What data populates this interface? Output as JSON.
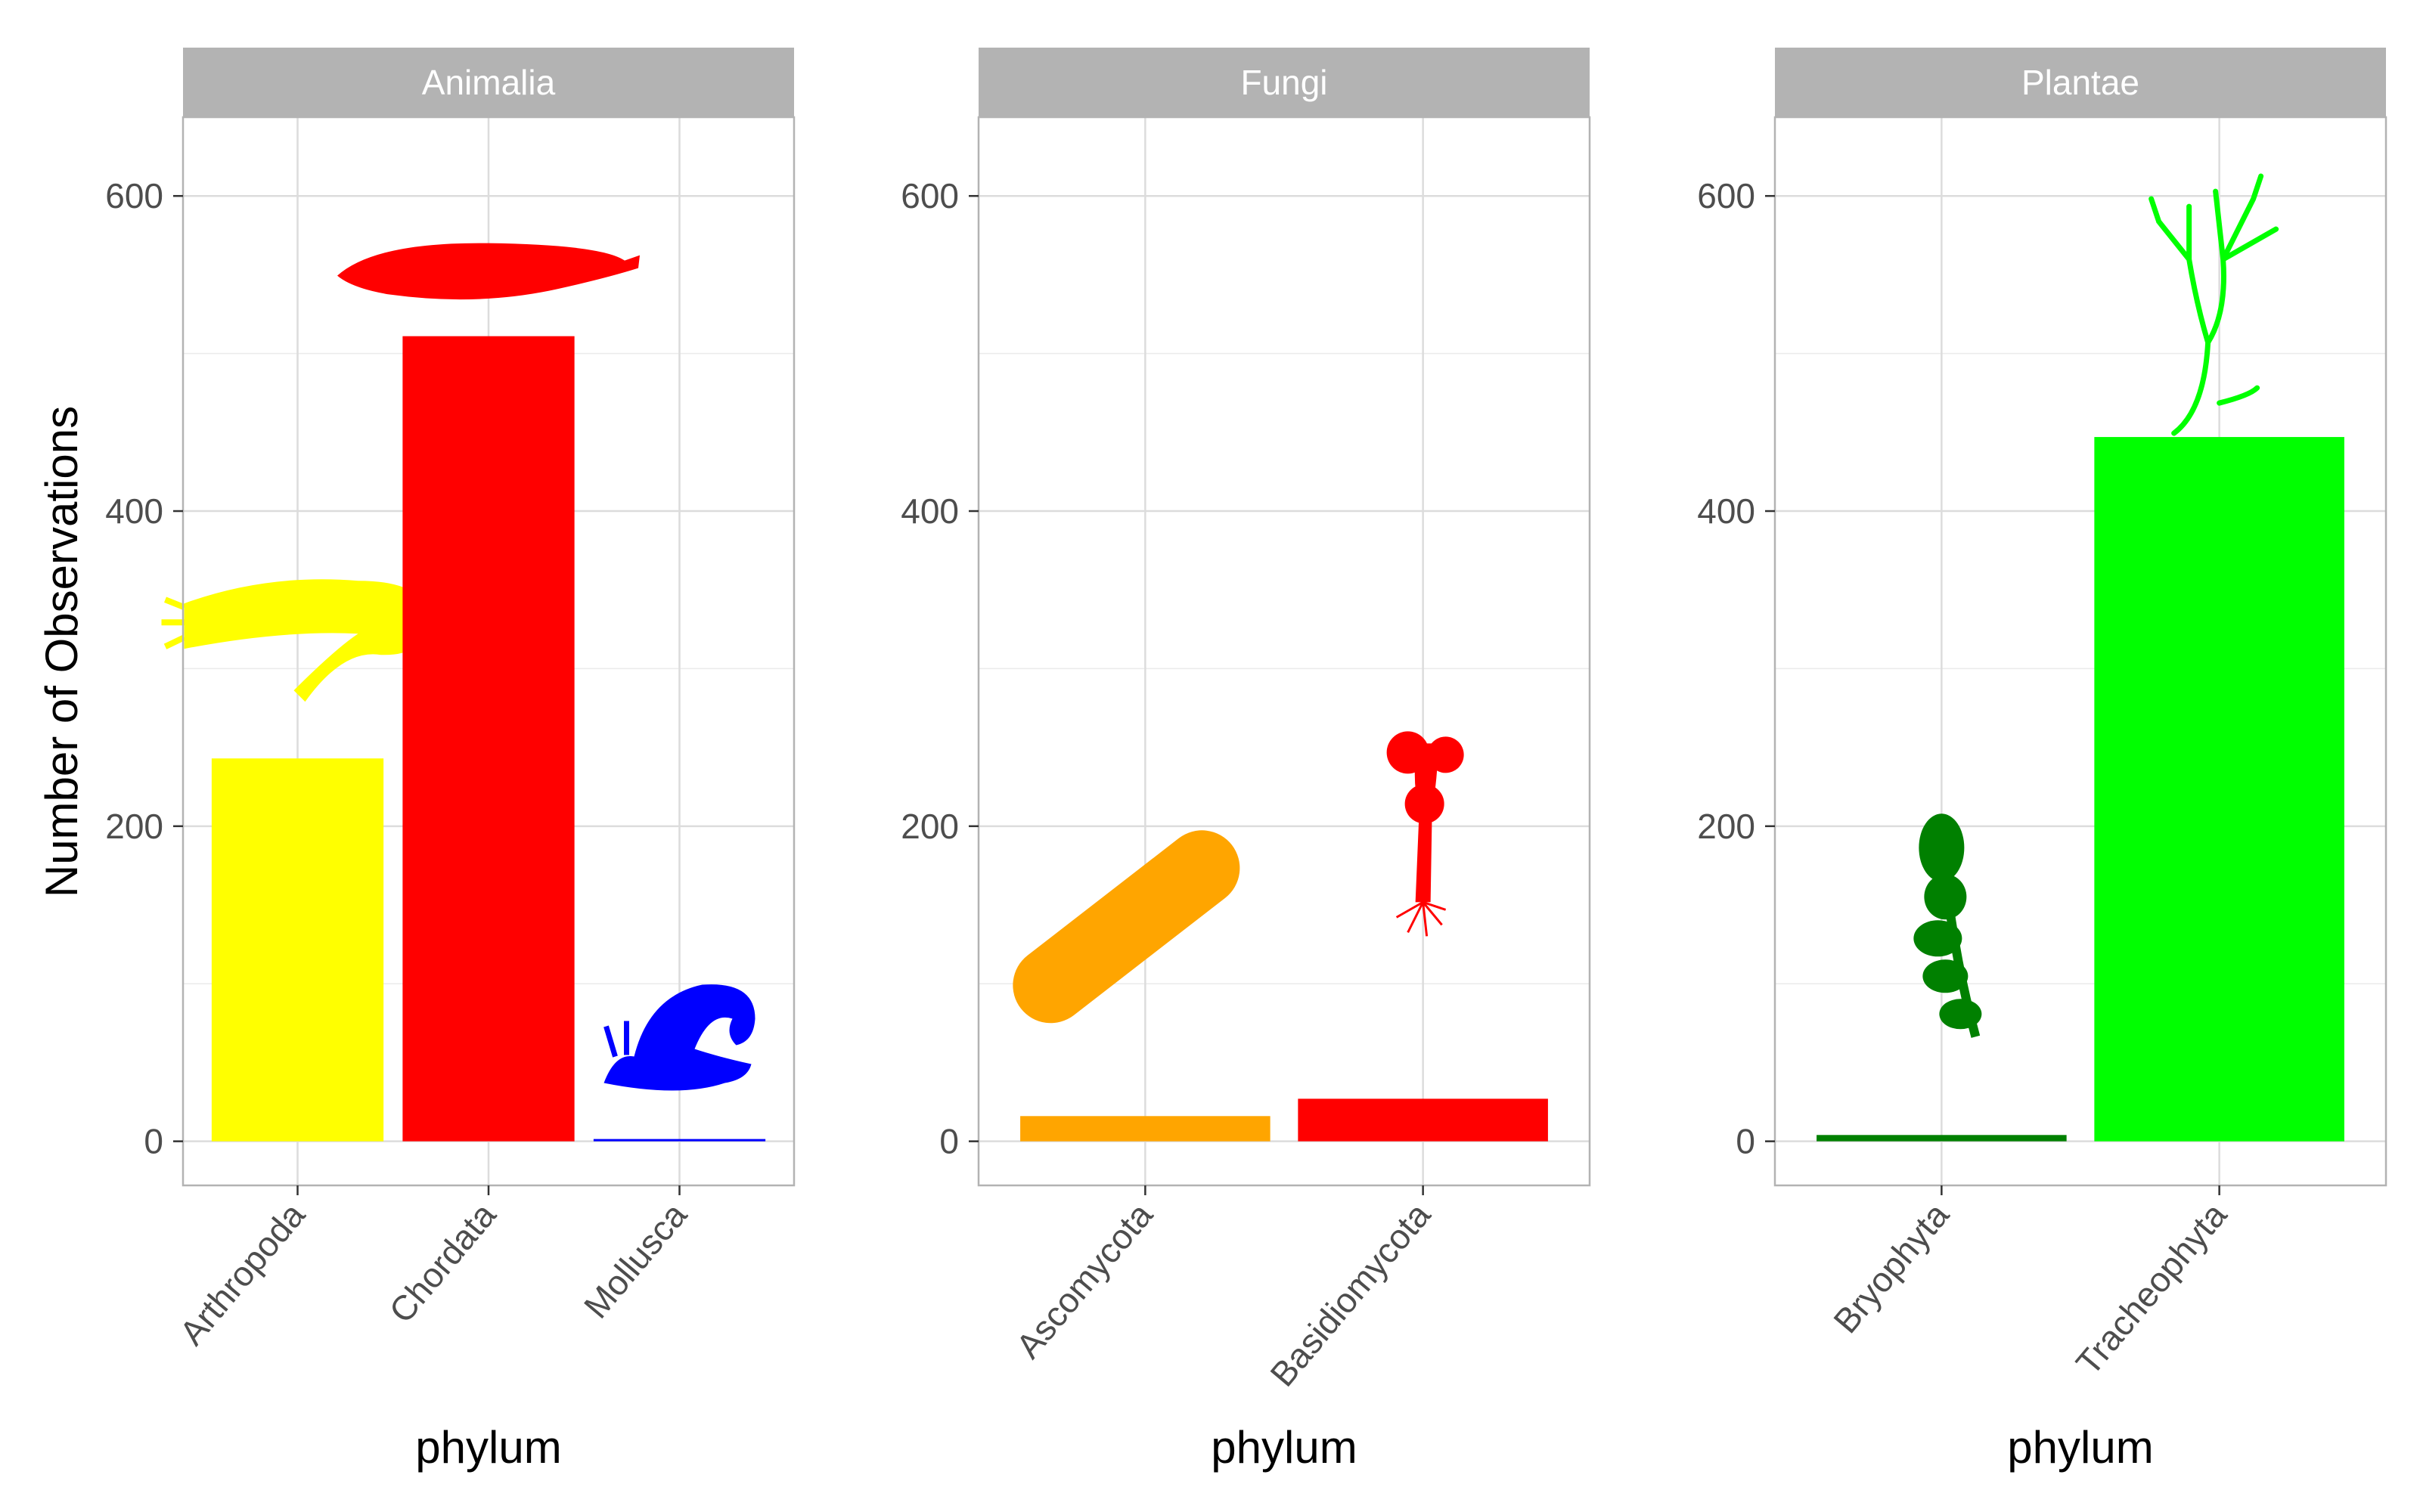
{
  "chart_data": {
    "type": "bar",
    "facets": [
      {
        "name": "Animalia",
        "categories": [
          "Arthropoda",
          "Chordata",
          "Mollusca"
        ],
        "values": [
          243,
          511,
          1
        ],
        "colors": [
          "#FFFF00",
          "#FF0000",
          "#0000FF"
        ],
        "icons": [
          "arthropod-silhouette-icon",
          "fish-silhouette-icon",
          "snail-silhouette-icon"
        ]
      },
      {
        "name": "Fungi",
        "categories": [
          "Ascomycota",
          "Basidiomycota"
        ],
        "values": [
          16,
          27
        ],
        "colors": [
          "#FFA500",
          "#FF0000"
        ],
        "icons": [
          "ascomycete-silhouette-icon",
          "mushroom-silhouette-icon"
        ]
      },
      {
        "name": "Plantae",
        "categories": [
          "Bryophyta",
          "Tracheophyta"
        ],
        "values": [
          4,
          447
        ],
        "colors": [
          "#008000",
          "#00FF00"
        ],
        "icons": [
          "moss-silhouette-icon",
          "tree-silhouette-icon"
        ]
      }
    ],
    "xlabel": "phylum",
    "ylabel": "Number of Observations",
    "ylim": [
      -28,
      650
    ],
    "yticks": [
      0,
      200,
      400,
      600
    ],
    "grid": true,
    "legend": "none"
  }
}
